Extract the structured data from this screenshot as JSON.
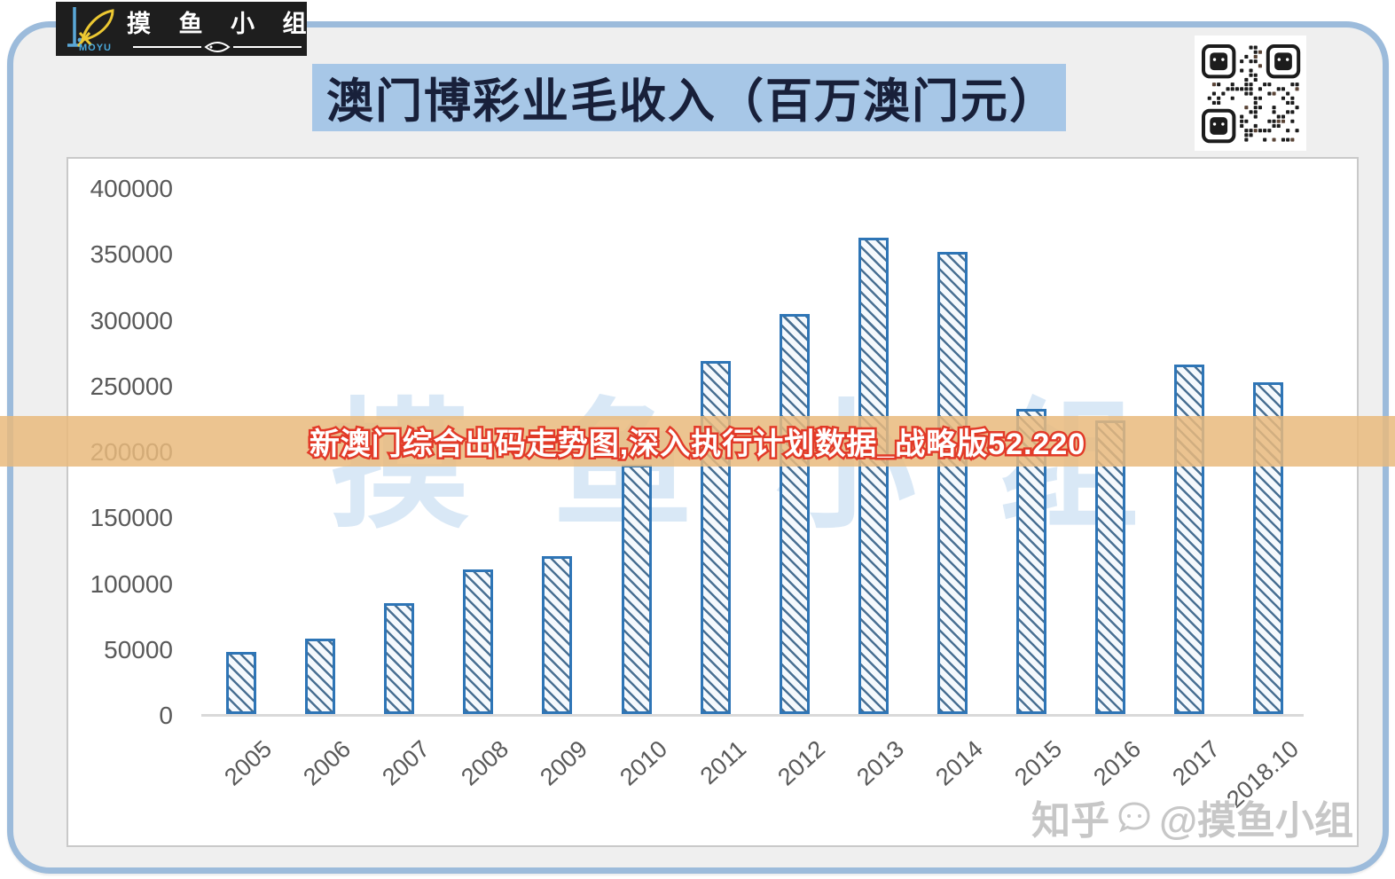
{
  "page": {
    "logo": {
      "brand": "MOYU",
      "title": "摸 鱼 小 组"
    },
    "title": "澳门博彩业毛收入（百万澳门元）",
    "overlay_text": "新澳门综合出码走势图,深入执行计划数据_战略版52.220",
    "watermark_chars": [
      "摸",
      "鱼",
      "小",
      "组"
    ],
    "zhihu": {
      "prefix": "知乎",
      "handle": "@摸鱼小组"
    }
  },
  "colors": {
    "frame_border": "#9cbbdb",
    "frame_bg": "#efefef",
    "title_banner_bg": "#a7c7e7",
    "title_text": "#18203a",
    "bar_border": "#2e75b6",
    "bar_hatch": "#1e4d78",
    "axis_text": "#595959",
    "overlay_bg": "#e9ba7d",
    "overlay_text_fill": "#ffffff",
    "overlay_text_stroke": "#e23a28",
    "watermark_blue": "#d9e8f6",
    "zhihu_gray": "#c7c7c7"
  },
  "chart_data": {
    "type": "bar",
    "title": "澳门博彩业毛收入（百万澳门元）",
    "categories": [
      "2005",
      "2006",
      "2007",
      "2008",
      "2009",
      "2010",
      "2011",
      "2012",
      "2013",
      "2014",
      "2015",
      "2016",
      "2017",
      "2018.10"
    ],
    "values": [
      47000,
      57500,
      84000,
      110000,
      120000,
      189500,
      268000,
      304000,
      361500,
      351000,
      231500,
      223000,
      265500,
      252000
    ],
    "ylim": [
      0,
      400000
    ],
    "ytick_step": 50000,
    "ytick_labels": [
      "400000",
      "350000",
      "300000",
      "250000",
      "200000",
      "150000",
      "100000",
      "50000",
      "0"
    ],
    "grid": false,
    "bar_pattern": "diagonal-hatch",
    "x_label_rotation_deg": -42
  }
}
